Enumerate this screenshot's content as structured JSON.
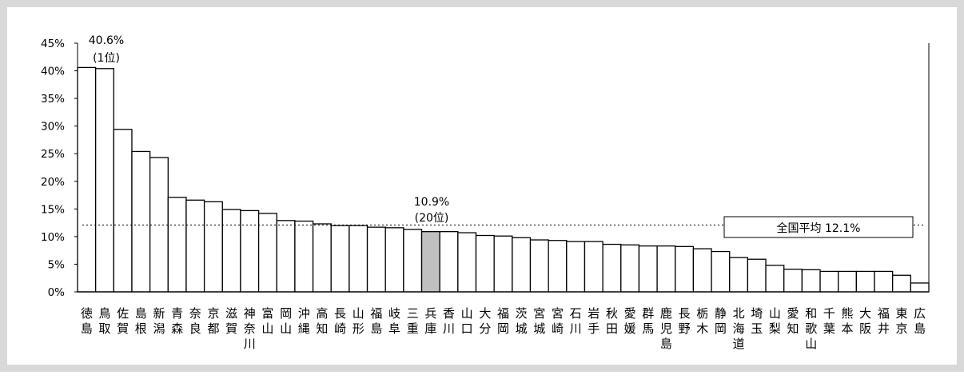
{
  "chart_data": {
    "type": "bar",
    "categories": [
      "徳島",
      "鳥取",
      "佐賀",
      "島根",
      "新潟",
      "青森",
      "奈良",
      "京都",
      "滋賀",
      "神奈川",
      "富山",
      "岡山",
      "沖縄",
      "高知",
      "長崎",
      "山形",
      "福島",
      "岐阜",
      "三重",
      "兵庫",
      "香川",
      "山口",
      "大分",
      "福岡",
      "茨城",
      "宮城",
      "宮崎",
      "石川",
      "岩手",
      "秋田",
      "愛媛",
      "群馬",
      "鹿児島",
      "長野",
      "栃木",
      "静岡",
      "北海道",
      "埼玉",
      "山梨",
      "愛知",
      "和歌山",
      "千葉",
      "熊本",
      "大阪",
      "福井",
      "東京",
      "広島"
    ],
    "values": [
      40.6,
      40.4,
      29.4,
      25.4,
      24.3,
      17.1,
      16.6,
      16.3,
      14.9,
      14.7,
      14.2,
      12.9,
      12.8,
      12.3,
      12.0,
      12.0,
      11.7,
      11.6,
      11.3,
      10.9,
      10.9,
      10.7,
      10.2,
      10.1,
      9.8,
      9.4,
      9.3,
      9.1,
      9.1,
      8.6,
      8.5,
      8.3,
      8.3,
      8.2,
      7.8,
      7.3,
      6.2,
      5.9,
      4.8,
      4.1,
      4.0,
      3.7,
      3.7,
      3.7,
      3.7,
      3.0,
      1.6
    ],
    "highlight_index": 19,
    "highlight_color": "#c0c0c0",
    "bar_color": "#ffffff",
    "ylim": [
      0,
      45
    ],
    "yticks": [
      "0%",
      "5%",
      "10%",
      "15%",
      "20%",
      "25%",
      "30%",
      "35%",
      "40%",
      "45%"
    ],
    "average": {
      "value": 12.1,
      "label": "全国平均 12.1%"
    },
    "annotations": [
      {
        "bar_index": 0,
        "value_label": "40.6%",
        "rank_label": "(1位)"
      },
      {
        "bar_index": 19,
        "value_label": "10.9%",
        "rank_label": "(20位)"
      }
    ]
  }
}
